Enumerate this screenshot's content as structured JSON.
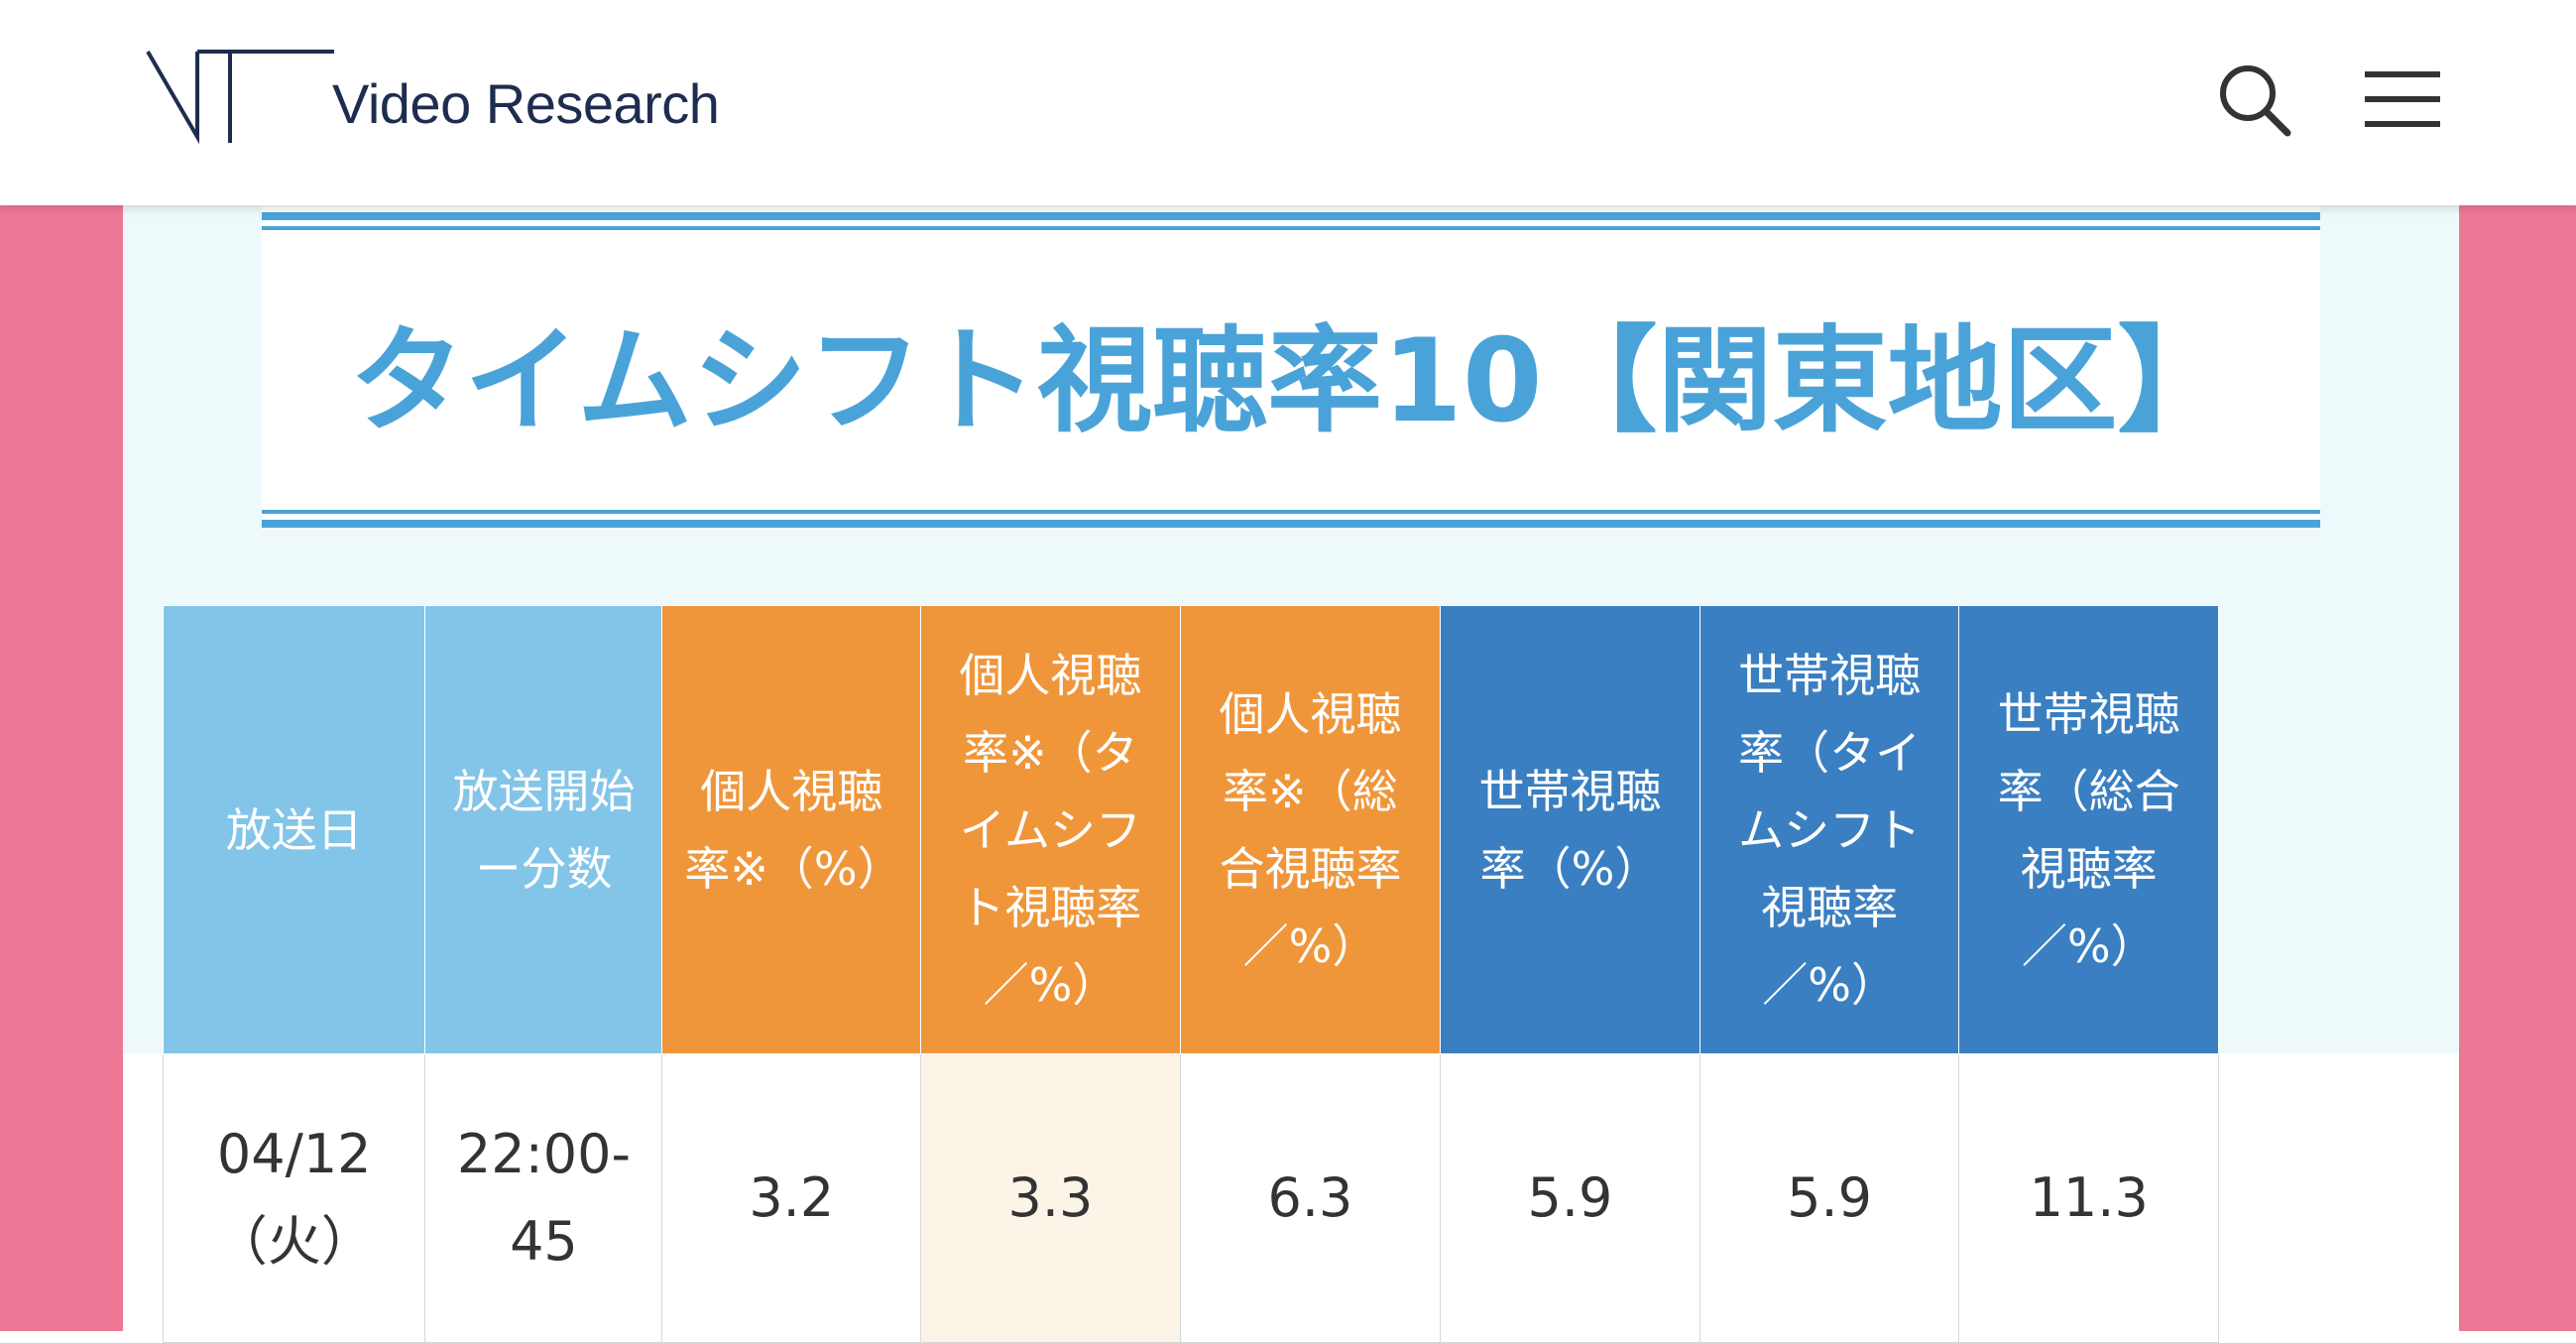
{
  "header": {
    "logo_text": "Video Research",
    "search_icon": "search-icon",
    "menu_icon": "hamburger-menu-icon"
  },
  "section": {
    "title": "タイムシフト視聴率10【関東地区】"
  },
  "table": {
    "headers": [
      "放送日",
      "放送開始ー分数",
      "個人視聴率※（%）",
      "個人視聴率※（タイムシフト視聴率／%）",
      "個人視聴率※（総合視聴率／%）",
      "世帯視聴率（%）",
      "世帯視聴率（タイムシフト視聴率／%）",
      "世帯視聴率（総合視聴率／%）"
    ],
    "rows": [
      [
        "04/12（火）",
        "22:00-45",
        "3.2",
        "3.3",
        "6.3",
        "5.9",
        "5.9",
        "11.3"
      ]
    ]
  },
  "colors": {
    "accent": "#4aa3d8",
    "header_light_blue": "#83c5e8",
    "header_orange": "#f0963a",
    "header_dark_blue": "#3a7fc1",
    "side_pink": "#ed7896",
    "highlight_cell": "#fdf4e8"
  }
}
